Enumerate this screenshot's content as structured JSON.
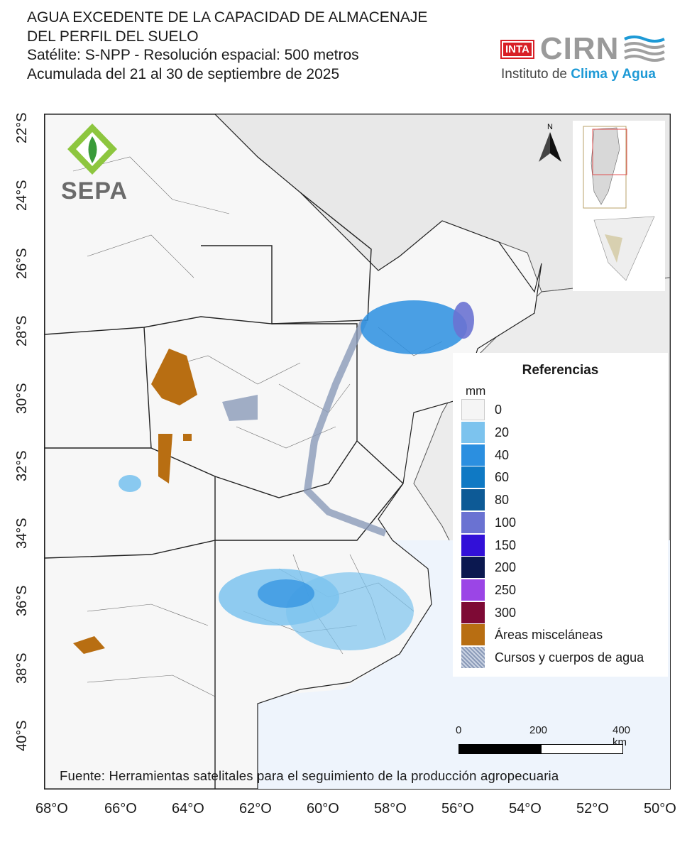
{
  "title": {
    "line1": "AGUA EXCEDENTE DE LA CAPACIDAD DE ALMACENAJE",
    "line2": "DEL PERFIL DEL SUELO",
    "line3": "Satélite: S-NPP - Resolución espacial: 500 metros",
    "line4": "Acumulada del 21 al 30 de septiembre de 2025"
  },
  "logos": {
    "inta": "INTA",
    "cirn": "CIRN",
    "cirn_sub_prefix": "Instituto de ",
    "cirn_sub_highlight": "Clima y Agua",
    "sepa": "SEPA"
  },
  "north_label": "N",
  "lat_labels": [
    "22°S",
    "24°S",
    "26°S",
    "28°S",
    "30°S",
    "32°S",
    "34°S",
    "36°S",
    "38°S",
    "40°S"
  ],
  "lon_labels": [
    "68°O",
    "66°O",
    "64°O",
    "62°O",
    "60°O",
    "58°O",
    "56°O",
    "54°O",
    "52°O",
    "50°O"
  ],
  "legend": {
    "title": "Referencias",
    "unit": "mm",
    "items": [
      {
        "label": "0",
        "color": "#f5f5f5"
      },
      {
        "label": "20",
        "color": "#7cc3ee"
      },
      {
        "label": "40",
        "color": "#2b8fe0"
      },
      {
        "label": "60",
        "color": "#0f79c4"
      },
      {
        "label": "80",
        "color": "#0d5a96"
      },
      {
        "label": "100",
        "color": "#6a72d2"
      },
      {
        "label": "150",
        "color": "#3210d8"
      },
      {
        "label": "200",
        "color": "#0b1850"
      },
      {
        "label": "250",
        "color": "#9b45e6"
      },
      {
        "label": "300",
        "color": "#7e0a35"
      },
      {
        "label": "Áreas misceláneas",
        "color": "#b86e12"
      },
      {
        "label": "Cursos y cuerpos de agua",
        "color": "#8a9ab8"
      }
    ]
  },
  "scale": {
    "labels": [
      "0",
      "200",
      "400 km"
    ]
  },
  "colors": {
    "land": "#f7f7f7",
    "neighbor": "#e6e6e6",
    "ocean": "#eef4fc",
    "border": "#222222"
  },
  "source": "Fuente: Herramientas satelitales para el seguimiento de la producción agropecuaria"
}
